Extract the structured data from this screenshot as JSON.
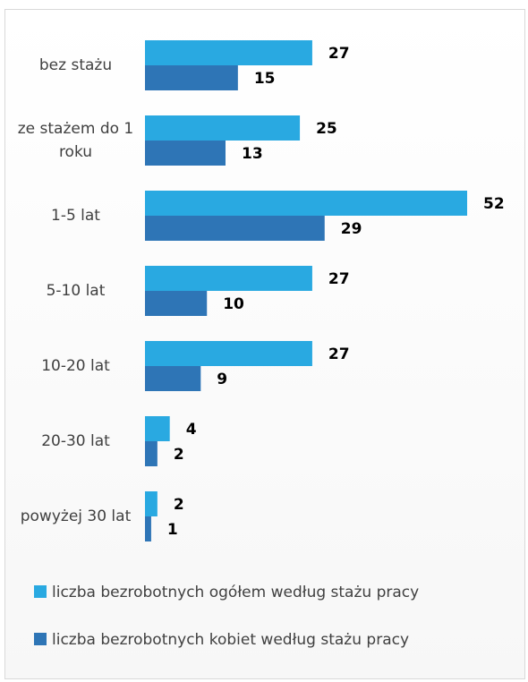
{
  "chart_data": {
    "type": "bar",
    "orientation": "horizontal",
    "categories": [
      "bez stażu",
      "ze stażem do 1 roku",
      "1-5 lat",
      "5-10 lat",
      "10-20 lat",
      "20-30 lat",
      "powyżej 30 lat"
    ],
    "series": [
      {
        "name": "liczba bezrobotnych ogółem według stażu pracy",
        "color": "#29a9e1",
        "values": [
          27,
          25,
          52,
          27,
          27,
          4,
          2
        ]
      },
      {
        "name": "liczba bezrobotnych kobiet według stażu pracy",
        "color": "#2e75b6",
        "values": [
          15,
          13,
          29,
          10,
          9,
          2,
          1
        ]
      }
    ],
    "legend": "bottom"
  }
}
